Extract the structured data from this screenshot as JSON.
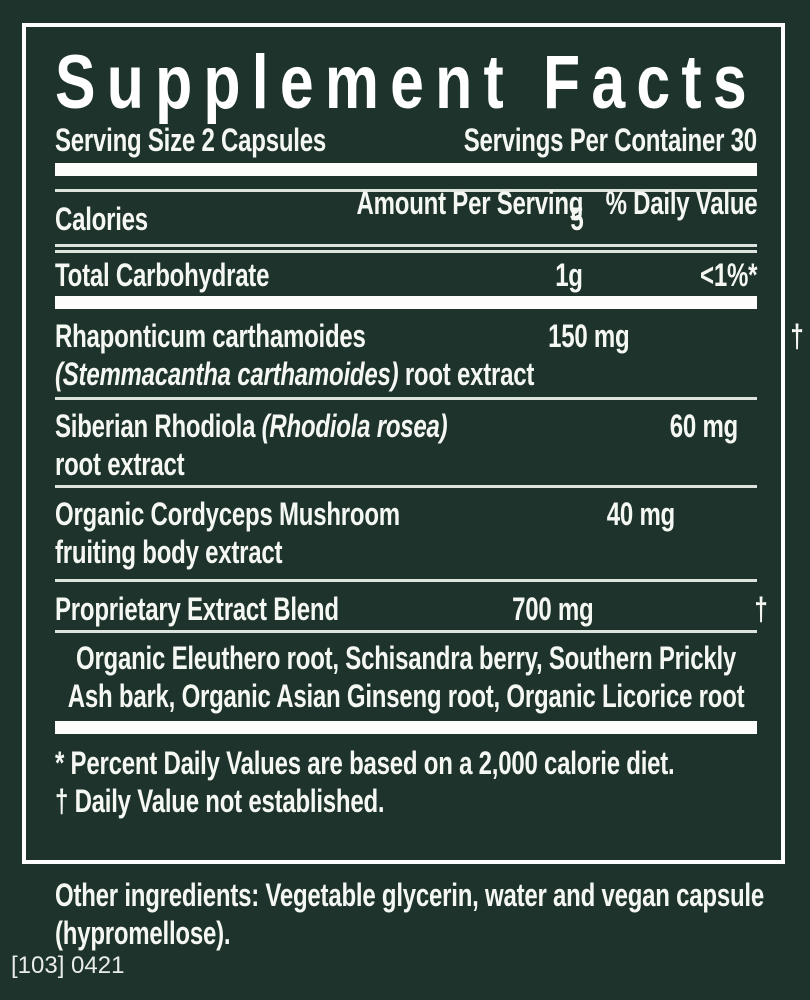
{
  "colors": {
    "background": "#1d332b",
    "text": "#f5f7f3",
    "border": "#ffffff",
    "thick_bar": "#fdfdfc",
    "thin_rule": "#dde3dd"
  },
  "panel": {
    "title": "Supplement Facts",
    "serving_size": "Serving Size 2 Capsules",
    "servings_per_container": "Servings Per Container 30",
    "columns": {
      "amount": "Amount Per Serving",
      "daily_value": "% Daily Value"
    },
    "rows": [
      {
        "name": "Calories",
        "amount": "5",
        "dv": ""
      },
      {
        "name": "Total Carbohydrate",
        "amount": "1g",
        "dv": "<1%*"
      },
      {
        "name": "Rhaponticum carthamoides",
        "name2_italic": "(Stemmacantha carthamoides)",
        "name2": " root extract",
        "amount": "150 mg",
        "dv": "†"
      },
      {
        "name": "Siberian Rhodiola ",
        "name_italic": "(Rhodiola rosea)",
        "name2": "root extract",
        "amount": "60 mg",
        "dv": "†"
      },
      {
        "name": "Organic Cordyceps Mushroom",
        "name2": "fruiting body extract",
        "amount": "40 mg",
        "dv": "†"
      },
      {
        "name": "Proprietary Extract Blend",
        "amount": "700 mg",
        "dv": "†"
      }
    ],
    "blend_ingredients": {
      "line1": "Organic Eleuthero root, Schisandra berry, Southern Prickly",
      "line2": "Ash bark, Organic Asian Ginseng root, Organic Licorice root"
    },
    "footnotes": {
      "percent_dv": "* Percent Daily Values are based on a 2,000 calorie diet.",
      "not_established": "† Daily Value not established."
    }
  },
  "other_ingredients": {
    "line1": "Other ingredients: Vegetable glycerin, water and vegan capsule",
    "line2": "(hypromellose)."
  },
  "lot_code": "[103] 0421"
}
